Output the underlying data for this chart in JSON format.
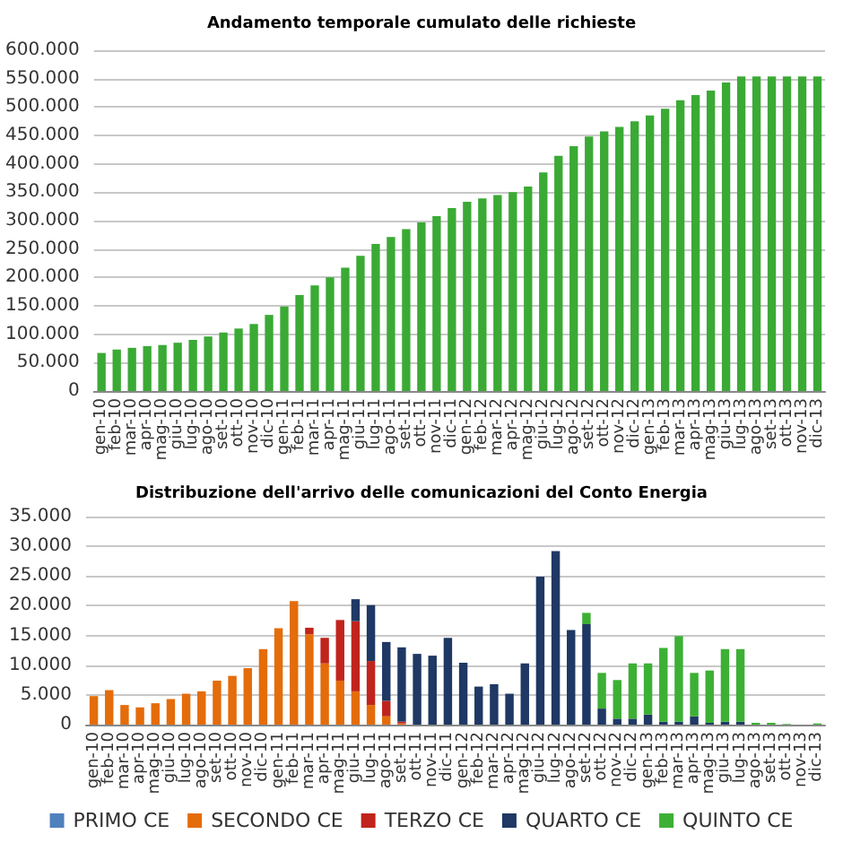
{
  "chart_data": [
    {
      "type": "bar",
      "title": "Andamento temporale cumulato delle richieste",
      "categories": [
        "gen-10",
        "feb-10",
        "mar-10",
        "apr-10",
        "mag-10",
        "giu-10",
        "lug-10",
        "ago-10",
        "set-10",
        "ott-10",
        "nov-10",
        "dic-10",
        "gen-11",
        "feb-11",
        "mar-11",
        "apr-11",
        "mag-11",
        "giu-11",
        "lug-11",
        "ago-11",
        "set-11",
        "ott-11",
        "nov-11",
        "dic-11",
        "gen-12",
        "feb-12",
        "mar-12",
        "apr-12",
        "mag-12",
        "giu-12",
        "lug-12",
        "ago-12",
        "set-12",
        "ott-12",
        "nov-12",
        "dic-12",
        "gen-13",
        "feb-13",
        "mar-13",
        "apr-13",
        "mag-13",
        "giu-13",
        "lug-13",
        "ago-13",
        "set-13",
        "ott-13",
        "nov-13",
        "dic-13"
      ],
      "values": [
        67000,
        73000,
        76000,
        79000,
        81000,
        85000,
        90000,
        96000,
        103000,
        110000,
        118000,
        134000,
        149000,
        169000,
        186000,
        200000,
        217000,
        238000,
        259000,
        271000,
        285000,
        297000,
        308000,
        322000,
        333000,
        339000,
        345000,
        350000,
        360000,
        385000,
        414000,
        431000,
        448000,
        457000,
        465000,
        475000,
        485000,
        497000,
        512000,
        521000,
        529000,
        543000,
        554000,
        554000,
        554000,
        554000,
        554000,
        554000
      ],
      "color": "#3aaa35",
      "ylim": [
        0,
        600000
      ],
      "yticks": [
        {
          "value": 0,
          "label": "0"
        },
        {
          "value": 50000,
          "label": "50.000"
        },
        {
          "value": 100000,
          "label": "100.000"
        },
        {
          "value": 150000,
          "label": "150.000"
        },
        {
          "value": 200000,
          "label": "200.000"
        },
        {
          "value": 250000,
          "label": "250.000"
        },
        {
          "value": 300000,
          "label": "300.000"
        },
        {
          "value": 350000,
          "label": "350.000"
        },
        {
          "value": 400000,
          "label": "400.000"
        },
        {
          "value": 450000,
          "label": "450.000"
        },
        {
          "value": 500000,
          "label": "500.000"
        },
        {
          "value": 550000,
          "label": "550.000"
        },
        {
          "value": 600000,
          "label": "600.000"
        }
      ],
      "grid": "y",
      "legend": false
    },
    {
      "type": "bar",
      "title": "Distribuzione dell'arrivo delle comunicazioni del Conto Energia",
      "stacked": true,
      "categories": [
        "gen-10",
        "feb-10",
        "mar-10",
        "apr-10",
        "mag-10",
        "giu-10",
        "lug-10",
        "ago-10",
        "set-10",
        "ott-10",
        "nov-10",
        "dic-10",
        "gen-11",
        "feb-11",
        "mar-11",
        "apr-11",
        "mag-11",
        "giu-11",
        "lug-11",
        "ago-11",
        "set-11",
        "ott-11",
        "nov-11",
        "dic-11",
        "gen-12",
        "feb-12",
        "mar-12",
        "apr-12",
        "mag-12",
        "giu-12",
        "lug-12",
        "ago-12",
        "set-12",
        "ott-12",
        "nov-12",
        "dic-12",
        "gen-13",
        "feb-13",
        "mar-13",
        "apr-13",
        "mag-13",
        "giu-13",
        "lug-13",
        "ago-13",
        "set-13",
        "ott-13",
        "nov-13",
        "dic-13"
      ],
      "series": [
        {
          "name": "PRIMO CE",
          "color": "#4f81bd",
          "values": [
            null,
            null,
            null,
            null,
            null,
            null,
            null,
            null,
            null,
            null,
            null,
            null,
            null,
            null,
            null,
            null,
            null,
            null,
            null,
            null,
            null,
            null,
            null,
            null,
            null,
            null,
            null,
            null,
            null,
            null,
            null,
            null,
            null,
            null,
            null,
            null,
            null,
            null,
            null,
            null,
            null,
            null,
            null,
            null,
            null,
            null,
            null,
            null
          ]
        },
        {
          "name": "SECONDO CE",
          "color": "#e46c0a",
          "values": [
            4800,
            5800,
            3300,
            2900,
            3600,
            4300,
            5200,
            5600,
            7400,
            8200,
            9500,
            12700,
            16200,
            20800,
            15200,
            10300,
            7400,
            5600,
            3300,
            1400,
            200,
            null,
            null,
            null,
            null,
            null,
            null,
            null,
            null,
            null,
            null,
            null,
            null,
            null,
            null,
            null,
            null,
            null,
            null,
            null,
            null,
            null,
            null,
            null,
            null,
            null,
            null,
            null
          ]
        },
        {
          "name": "TERZO CE",
          "color": "#c0241c",
          "values": [
            null,
            null,
            null,
            null,
            null,
            null,
            null,
            null,
            null,
            null,
            null,
            null,
            null,
            null,
            1100,
            4300,
            10200,
            11800,
            7400,
            2600,
            300,
            null,
            null,
            null,
            null,
            null,
            null,
            null,
            null,
            null,
            null,
            null,
            null,
            null,
            null,
            null,
            null,
            null,
            null,
            null,
            null,
            null,
            null,
            null,
            null,
            null,
            null,
            null
          ]
        },
        {
          "name": "QUARTO CE",
          "color": "#1f3864",
          "values": [
            null,
            null,
            null,
            null,
            null,
            null,
            null,
            null,
            null,
            null,
            null,
            null,
            null,
            null,
            null,
            null,
            null,
            3700,
            9400,
            9900,
            12500,
            11900,
            11600,
            14600,
            10400,
            6400,
            6800,
            5200,
            10300,
            24900,
            29200,
            15900,
            16900,
            2700,
            1000,
            1000,
            1700,
            500,
            500,
            1400,
            300,
            500,
            500,
            null,
            null,
            null,
            null,
            null
          ]
        },
        {
          "name": "QUINTO CE",
          "color": "#3cb034",
          "values": [
            null,
            null,
            null,
            null,
            null,
            null,
            null,
            null,
            null,
            null,
            null,
            null,
            null,
            null,
            null,
            null,
            null,
            null,
            null,
            null,
            null,
            null,
            null,
            null,
            null,
            null,
            null,
            null,
            null,
            null,
            null,
            null,
            1900,
            6000,
            6500,
            9300,
            8600,
            12400,
            14400,
            7300,
            8800,
            12200,
            12200,
            300,
            300,
            100,
            null,
            200
          ]
        }
      ],
      "ylim": [
        0,
        35000
      ],
      "yticks": [
        {
          "value": 0,
          "label": "0"
        },
        {
          "value": 5000,
          "label": "5.000"
        },
        {
          "value": 10000,
          "label": "10.000"
        },
        {
          "value": 15000,
          "label": "15.000"
        },
        {
          "value": 20000,
          "label": "20.000"
        },
        {
          "value": 25000,
          "label": "25.000"
        },
        {
          "value": 30000,
          "label": "30.000"
        },
        {
          "value": 35000,
          "label": "35.000"
        }
      ],
      "grid": "y",
      "legend": "bottom"
    }
  ]
}
